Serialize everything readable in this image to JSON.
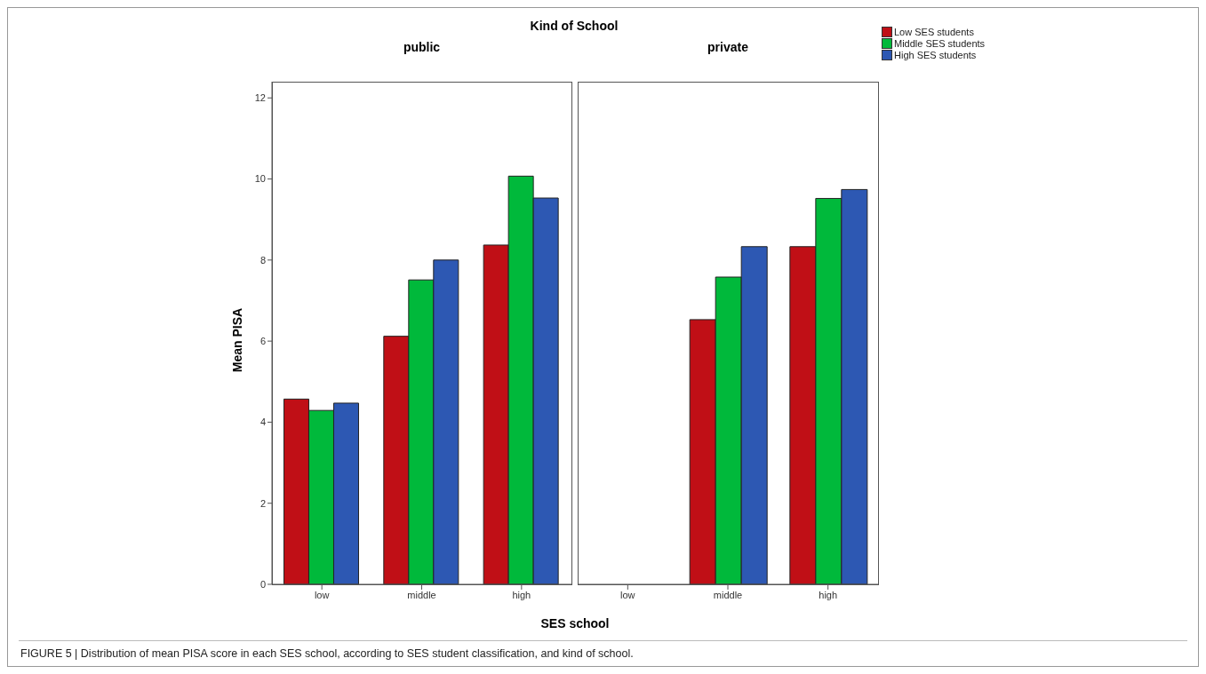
{
  "chart_data": [
    {
      "type": "bar",
      "title": "public",
      "xlabel": "SES school",
      "ylabel": "Mean PISA",
      "categories": [
        "low",
        "middle",
        "high"
      ],
      "series": [
        {
          "color": "#c00f16",
          "values": [
            4.57,
            6.12,
            8.37
          ]
        },
        {
          "color": "#00b93b",
          "values": [
            4.29,
            7.51,
            10.07
          ]
        },
        {
          "color": "#2d58b3",
          "values": [
            4.47,
            8.0,
            9.53
          ]
        }
      ],
      "ylim": [
        0,
        12.4
      ],
      "yticks": [
        0,
        2,
        4,
        6,
        8,
        10,
        12
      ],
      "grid": false,
      "annotations": [
        "Kind of School",
        "FIGURE 5 | Distribution of mean PISA score in each SES school, according to SES student classification, and kind of school."
      ]
    },
    {
      "type": "bar",
      "title": "private",
      "categories": [
        "low",
        "middle",
        "high"
      ],
      "series": [
        {
          "name": "Low SES students",
          "color": "#c00f16",
          "values": [
            null,
            6.53,
            8.33
          ]
        },
        {
          "name": "Middle SES students",
          "color": "#00b93b",
          "values": [
            null,
            7.58,
            9.52
          ]
        },
        {
          "name": "High SES students",
          "color": "#2d58b3",
          "values": [
            null,
            8.33,
            9.74
          ]
        }
      ],
      "ylim": [
        0,
        12.4
      ],
      "tick_labels": "x",
      "grid": false,
      "legend": "top right"
    }
  ]
}
